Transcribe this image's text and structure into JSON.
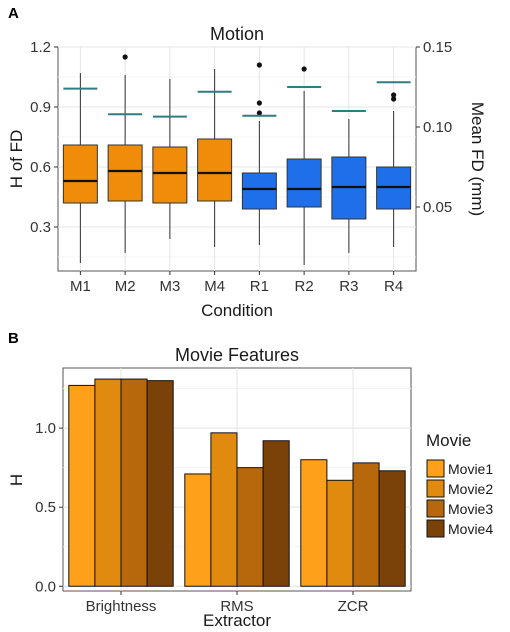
{
  "chart_data": [
    {
      "panel": "A",
      "type": "box",
      "title": "Motion",
      "xlabel": "Condition",
      "ylabel": "H of FD",
      "y2label": "Mean FD (mm)",
      "ylim": [
        0.08,
        1.2
      ],
      "y2lim": [
        0.01,
        0.15
      ],
      "yticks": [
        "0.3",
        "0.6",
        "0.9",
        "1.2"
      ],
      "yticks_values": [
        0.3,
        0.6,
        0.9,
        1.2
      ],
      "y2ticks": [
        "0.05",
        "0.10",
        "0.15"
      ],
      "y2ticks_values": [
        0.05,
        0.1,
        0.15
      ],
      "grid": true,
      "colors": {
        "M": "#F08C0A",
        "R": "#1F6FEB",
        "meanfd": "#2E7D80"
      },
      "categories": [
        {
          "label": "M1",
          "group": "M",
          "q1": 0.42,
          "median": 0.53,
          "q3": 0.71,
          "lo": 0.12,
          "hi": 1.07,
          "outliers": [],
          "meanfd": 0.124
        },
        {
          "label": "M2",
          "group": "M",
          "q1": 0.43,
          "median": 0.58,
          "q3": 0.71,
          "lo": 0.17,
          "hi": 1.06,
          "outliers": [
            1.15
          ],
          "meanfd": 0.108
        },
        {
          "label": "M3",
          "group": "M",
          "q1": 0.42,
          "median": 0.57,
          "q3": 0.7,
          "lo": 0.24,
          "hi": 1.04,
          "outliers": [],
          "meanfd": 0.1065
        },
        {
          "label": "M4",
          "group": "M",
          "q1": 0.43,
          "median": 0.57,
          "q3": 0.74,
          "lo": 0.2,
          "hi": 1.09,
          "outliers": [],
          "meanfd": 0.122
        },
        {
          "label": "R1",
          "group": "R",
          "q1": 0.39,
          "median": 0.49,
          "q3": 0.57,
          "lo": 0.21,
          "hi": 0.83,
          "outliers": [
            0.87,
            0.92,
            1.11
          ],
          "meanfd": 0.107
        },
        {
          "label": "R2",
          "group": "R",
          "q1": 0.4,
          "median": 0.49,
          "q3": 0.64,
          "lo": 0.11,
          "hi": 0.98,
          "outliers": [
            1.09
          ],
          "meanfd": 0.125
        },
        {
          "label": "R3",
          "group": "R",
          "q1": 0.34,
          "median": 0.5,
          "q3": 0.65,
          "lo": 0.17,
          "hi": 0.84,
          "outliers": [],
          "meanfd": 0.11
        },
        {
          "label": "R4",
          "group": "R",
          "q1": 0.39,
          "median": 0.5,
          "q3": 0.6,
          "lo": 0.2,
          "hi": 0.88,
          "outliers": [
            0.94,
            0.96
          ],
          "meanfd": 0.128
        }
      ]
    },
    {
      "panel": "B",
      "type": "bar",
      "title": "Movie Features",
      "xlabel": "Extractor",
      "ylabel": "H",
      "ylim": [
        -0.03,
        1.38
      ],
      "yticks": [
        "0.0",
        "0.5",
        "1.0"
      ],
      "yticks_values": [
        0.0,
        0.5,
        1.0
      ],
      "grid": true,
      "categories": [
        "Brightness",
        "RMS",
        "ZCR"
      ],
      "series": [
        {
          "name": "Movie1",
          "color": "#FFA01A",
          "values": [
            1.27,
            0.71,
            0.8
          ]
        },
        {
          "name": "Movie2",
          "color": "#E08A10",
          "values": [
            1.31,
            0.97,
            0.67
          ]
        },
        {
          "name": "Movie3",
          "color": "#B8680C",
          "values": [
            1.31,
            0.75,
            0.78
          ]
        },
        {
          "name": "Movie4",
          "color": "#7A4208",
          "values": [
            1.3,
            0.92,
            0.73
          ]
        }
      ],
      "legend": {
        "title": "Movie",
        "placement": "right"
      }
    }
  ]
}
